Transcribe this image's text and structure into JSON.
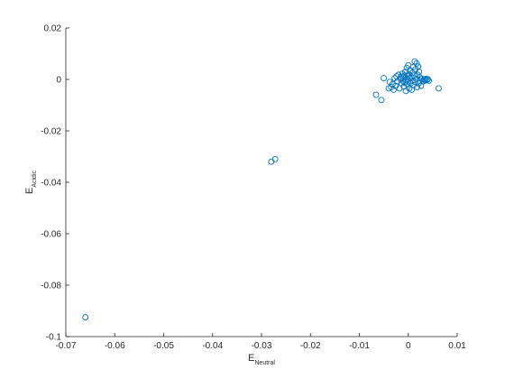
{
  "chart_data": {
    "type": "scatter",
    "title": "",
    "xlabel": {
      "main": "E",
      "sub": "Neutral"
    },
    "ylabel": {
      "main": "E",
      "sub": "Acidic"
    },
    "xlim": [
      -0.07,
      0.01
    ],
    "ylim": [
      -0.1,
      0.02
    ],
    "xticks": [
      -0.07,
      -0.06,
      -0.05,
      -0.04,
      -0.03,
      -0.02,
      -0.01,
      0,
      0.01
    ],
    "xtick_labels": [
      "-0.07",
      "-0.06",
      "-0.05",
      "-0.04",
      "-0.03",
      "-0.02",
      "-0.01",
      "0",
      "0.01"
    ],
    "yticks": [
      -0.1,
      -0.08,
      -0.06,
      -0.04,
      -0.02,
      0,
      0.02
    ],
    "ytick_labels": [
      "-0.1",
      "-0.08",
      "-0.06",
      "-0.04",
      "-0.02",
      "0",
      "0.02"
    ],
    "grid": false,
    "marker_color": "#0072BD",
    "points": [
      {
        "x": -0.066,
        "y": -0.0925
      },
      {
        "x": -0.028,
        "y": -0.032
      },
      {
        "x": -0.0272,
        "y": -0.031
      },
      {
        "x": -0.0066,
        "y": -0.006
      },
      {
        "x": -0.0055,
        "y": -0.008
      },
      {
        "x": -0.005,
        "y": 0.0005
      },
      {
        "x": 0.0062,
        "y": -0.0035
      },
      {
        "x": -0.004,
        "y": -0.0035
      },
      {
        "x": -0.0038,
        "y": -0.001
      },
      {
        "x": -0.0035,
        "y": -0.003
      },
      {
        "x": -0.0032,
        "y": -0.0018
      },
      {
        "x": -0.003,
        "y": -0.004
      },
      {
        "x": -0.0028,
        "y": 0.0005
      },
      {
        "x": -0.0026,
        "y": -0.0025
      },
      {
        "x": -0.0024,
        "y": 0.0012
      },
      {
        "x": -0.0022,
        "y": -0.0008
      },
      {
        "x": -0.002,
        "y": 0.0018
      },
      {
        "x": -0.0018,
        "y": -0.0035
      },
      {
        "x": -0.0016,
        "y": 0.0002
      },
      {
        "x": -0.0015,
        "y": 0.001
      },
      {
        "x": -0.0014,
        "y": -0.0015
      },
      {
        "x": -0.0012,
        "y": 0.0022
      },
      {
        "x": -0.0011,
        "y": -0.0005
      },
      {
        "x": -0.001,
        "y": 0.0008
      },
      {
        "x": -0.0009,
        "y": -0.0028
      },
      {
        "x": -0.0008,
        "y": 0.0015
      },
      {
        "x": -0.0007,
        "y": -0.0012
      },
      {
        "x": -0.0006,
        "y": 0.003
      },
      {
        "x": -0.0005,
        "y": -0.0045
      },
      {
        "x": -0.0004,
        "y": 0.0
      },
      {
        "x": -0.0003,
        "y": 0.0045
      },
      {
        "x": -0.0002,
        "y": -0.002
      },
      {
        "x": -0.0001,
        "y": 0.0012
      },
      {
        "x": 0.0,
        "y": 0.0055
      },
      {
        "x": 0.0,
        "y": -0.0008
      },
      {
        "x": 0.0001,
        "y": 0.002
      },
      {
        "x": 0.0002,
        "y": -0.0035
      },
      {
        "x": 0.0003,
        "y": 0.0005
      },
      {
        "x": 0.0004,
        "y": 0.0035
      },
      {
        "x": 0.0005,
        "y": -0.0015
      },
      {
        "x": 0.0006,
        "y": 0.001
      },
      {
        "x": 0.0007,
        "y": -0.004
      },
      {
        "x": 0.0008,
        "y": 0.0025
      },
      {
        "x": 0.0009,
        "y": -0.0005
      },
      {
        "x": 0.001,
        "y": 0.0048
      },
      {
        "x": 0.0011,
        "y": -0.0022
      },
      {
        "x": 0.0012,
        "y": 0.0015
      },
      {
        "x": 0.0013,
        "y": 0.007
      },
      {
        "x": 0.0014,
        "y": -0.001
      },
      {
        "x": 0.0015,
        "y": 0.004
      },
      {
        "x": 0.0016,
        "y": 0.0002
      },
      {
        "x": 0.0017,
        "y": 0.0062
      },
      {
        "x": 0.0018,
        "y": -0.003
      },
      {
        "x": 0.0019,
        "y": 0.0018
      },
      {
        "x": 0.002,
        "y": 0.005
      },
      {
        "x": 0.0021,
        "y": -0.0015
      },
      {
        "x": 0.0022,
        "y": 0.003
      },
      {
        "x": 0.0023,
        "y": -0.0005
      },
      {
        "x": 0.0024,
        "y": 0.0008
      },
      {
        "x": 0.0026,
        "y": -0.0025
      },
      {
        "x": 0.0028,
        "y": 0.0002
      },
      {
        "x": 0.003,
        "y": -0.0008
      },
      {
        "x": 0.0032,
        "y": 0.0
      },
      {
        "x": 0.0034,
        "y": -0.0004
      },
      {
        "x": 0.0036,
        "y": 0.0002
      },
      {
        "x": 0.0038,
        "y": -0.0003
      },
      {
        "x": 0.004,
        "y": 0.0001
      },
      {
        "x": 0.0042,
        "y": -0.0005
      }
    ]
  }
}
